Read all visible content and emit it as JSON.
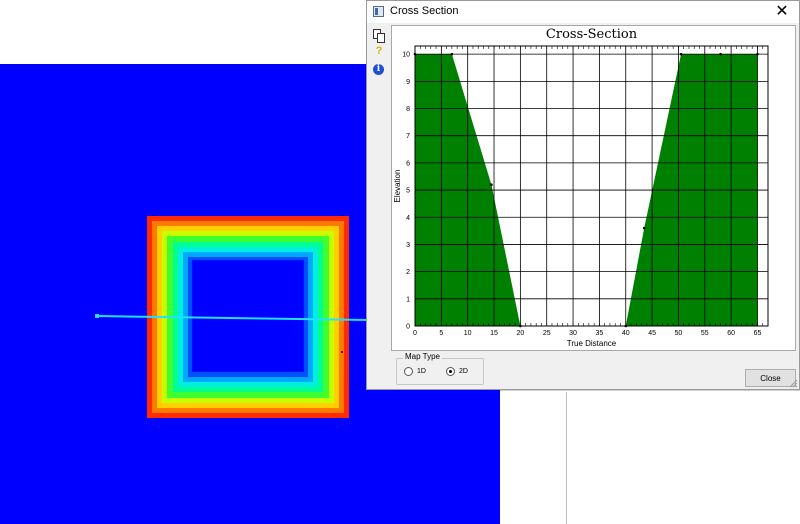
{
  "window": {
    "title": "Cross Section",
    "close_glyph": "✕",
    "toolbar": [
      {
        "name": "copy-icon"
      },
      {
        "name": "help-icon",
        "glyph": "?"
      },
      {
        "name": "info-icon",
        "glyph": "i"
      }
    ],
    "map_type": {
      "legend": "Map Type",
      "options": [
        {
          "label": "1D",
          "selected": false
        },
        {
          "label": "2D",
          "selected": true
        }
      ]
    },
    "close_label": "Close"
  },
  "colors": {
    "background_grid": "#0000ff",
    "fill": "#008000",
    "section_line": "#22e0ff"
  },
  "chart_data": {
    "type": "area",
    "title": "Cross-Section",
    "xlabel": "True Distance",
    "ylabel": "Elevation",
    "xlim": [
      0,
      67
    ],
    "ylim": [
      0,
      10.3
    ],
    "xticks": [
      0,
      5,
      10,
      15,
      20,
      25,
      30,
      35,
      40,
      45,
      50,
      55,
      60,
      65
    ],
    "yticks": [
      0,
      1,
      2,
      3,
      4,
      5,
      6,
      7,
      8,
      9,
      10
    ],
    "grid": true,
    "series": [
      {
        "x": [
          0,
          7,
          14.5,
          20,
          40,
          43.5,
          50.5,
          58,
          65
        ],
        "y": [
          10,
          10,
          5.2,
          0,
          0,
          3.6,
          10,
          10,
          10
        ]
      }
    ]
  }
}
